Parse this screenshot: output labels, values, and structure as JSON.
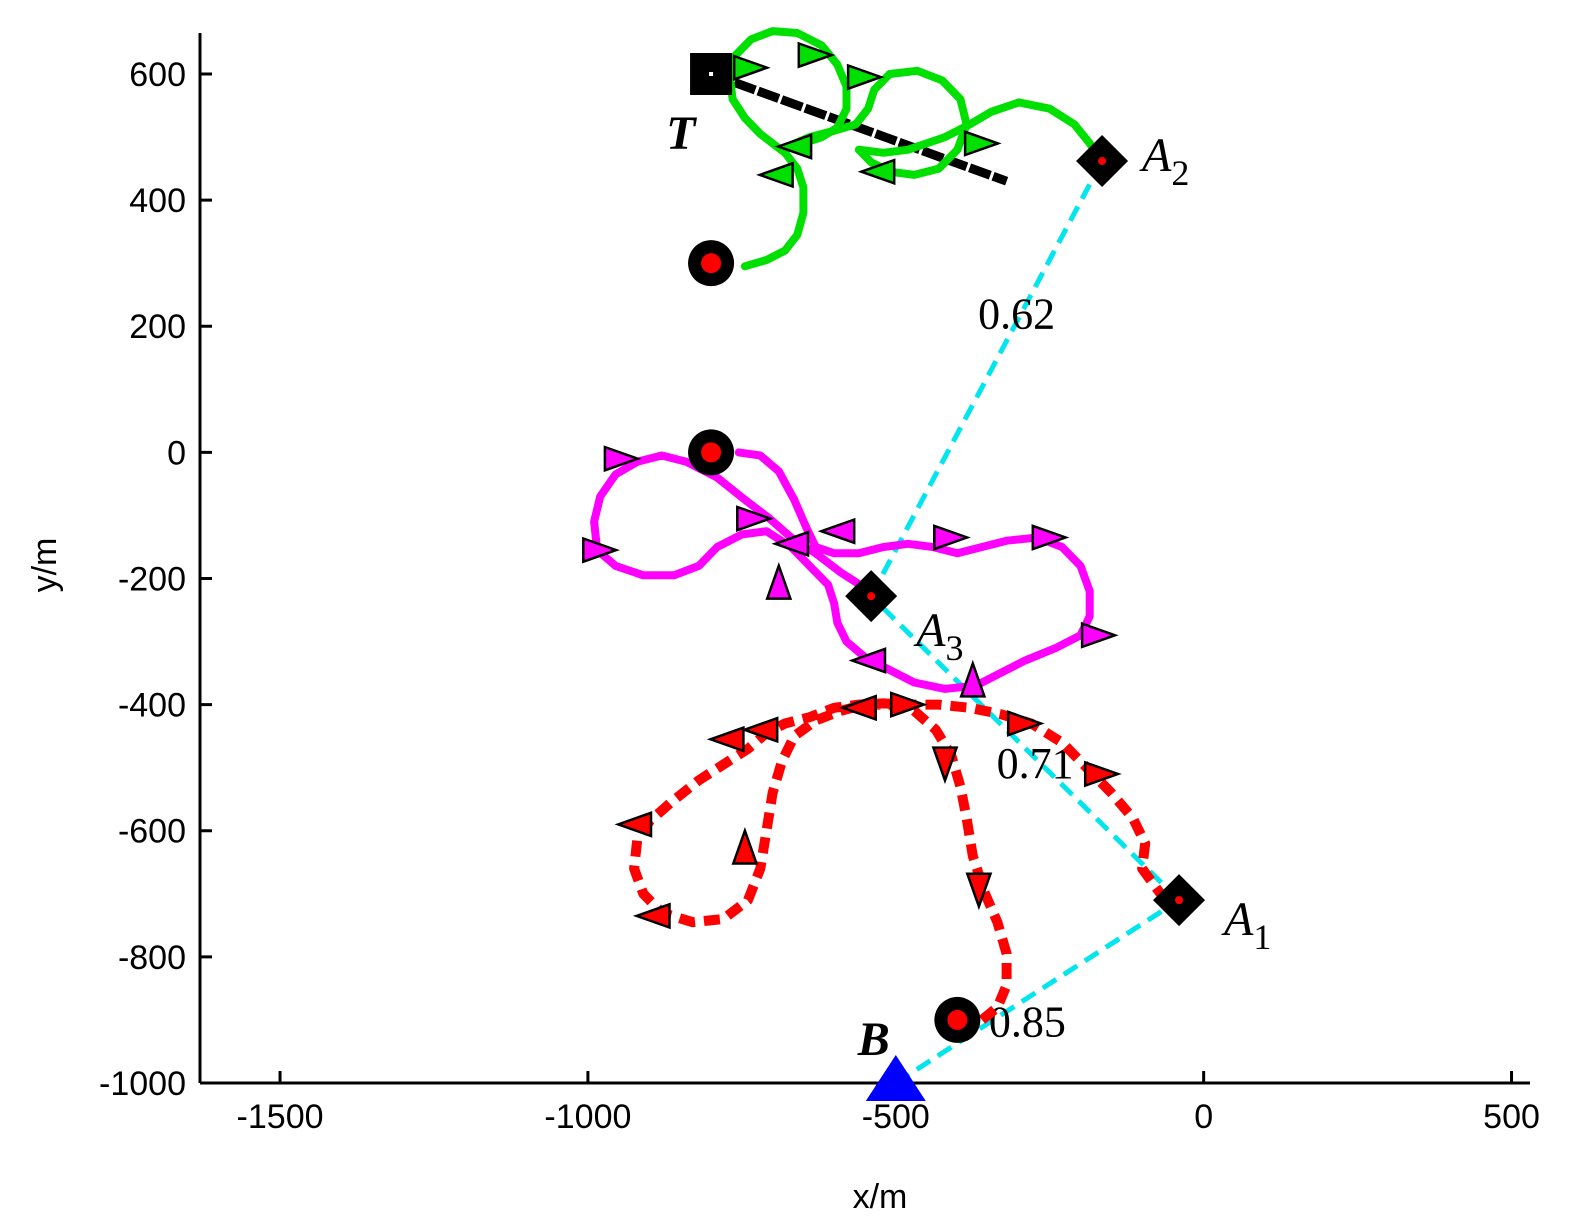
{
  "chart_data": {
    "type": "line",
    "xlabel": "x/m",
    "ylabel": "y/m",
    "xlim": [
      -1630,
      530
    ],
    "ylim": [
      -1000,
      665
    ],
    "x_ticks": [
      -1500,
      -1000,
      -500,
      0,
      500
    ],
    "y_ticks": [
      -1000,
      -800,
      -600,
      -400,
      -200,
      0,
      200,
      400,
      600
    ],
    "x_tick_labels": [
      "-1500",
      "-1000",
      "-500",
      "0",
      "500"
    ],
    "y_tick_labels": [
      "-1000",
      "-800",
      "-600",
      "-400",
      "-200",
      "0",
      "200",
      "400",
      "600"
    ],
    "grid": false,
    "series": [
      {
        "color": "#00e000",
        "style": "solid",
        "points": [
          [
            -745,
            295
          ],
          [
            -710,
            305
          ],
          [
            -680,
            320
          ],
          [
            -660,
            345
          ],
          [
            -650,
            380
          ],
          [
            -650,
            420
          ],
          [
            -660,
            450
          ],
          [
            -680,
            475
          ],
          [
            -700,
            490
          ],
          [
            -720,
            505
          ],
          [
            -745,
            530
          ],
          [
            -765,
            560
          ],
          [
            -770,
            600
          ],
          [
            -760,
            630
          ],
          [
            -735,
            655
          ],
          [
            -700,
            668
          ],
          [
            -660,
            665
          ],
          [
            -620,
            645
          ],
          [
            -595,
            615
          ],
          [
            -580,
            580
          ],
          [
            -580,
            545
          ],
          [
            -595,
            515
          ],
          [
            -620,
            500
          ],
          [
            -650,
            490
          ],
          [
            -675,
            485
          ],
          [
            -640,
            500
          ],
          [
            -600,
            510
          ],
          [
            -565,
            520
          ],
          [
            -545,
            545
          ],
          [
            -535,
            575
          ],
          [
            -510,
            600
          ],
          [
            -465,
            605
          ],
          [
            -425,
            590
          ],
          [
            -395,
            560
          ],
          [
            -385,
            520
          ],
          [
            -400,
            480
          ],
          [
            -430,
            450
          ],
          [
            -470,
            440
          ],
          [
            -510,
            445
          ],
          [
            -540,
            460
          ],
          [
            -560,
            480
          ],
          [
            -520,
            475
          ],
          [
            -480,
            480
          ],
          [
            -450,
            490
          ],
          [
            -420,
            500
          ],
          [
            -380,
            520
          ],
          [
            -345,
            540
          ],
          [
            -300,
            555
          ],
          [
            -250,
            545
          ],
          [
            -210,
            520
          ],
          [
            -185,
            490
          ],
          [
            -165,
            462
          ]
        ],
        "arrows": [
          [
            -740,
            610,
            "r"
          ],
          [
            -635,
            630,
            "r"
          ],
          [
            -555,
            595,
            "r"
          ],
          [
            -365,
            490,
            "r"
          ],
          [
            -660,
            485,
            "l"
          ],
          [
            -690,
            440,
            "l"
          ],
          [
            -525,
            445,
            "l"
          ]
        ]
      },
      {
        "color": "#ff00ff",
        "style": "solid",
        "points": [
          [
            -755,
            0
          ],
          [
            -720,
            -5
          ],
          [
            -690,
            -30
          ],
          [
            -665,
            -75
          ],
          [
            -645,
            -120
          ],
          [
            -630,
            -150
          ],
          [
            -600,
            -160
          ],
          [
            -560,
            -160
          ],
          [
            -520,
            -150
          ],
          [
            -480,
            -145
          ],
          [
            -440,
            -150
          ],
          [
            -400,
            -160
          ],
          [
            -360,
            -150
          ],
          [
            -320,
            -140
          ],
          [
            -270,
            -135
          ],
          [
            -230,
            -150
          ],
          [
            -200,
            -180
          ],
          [
            -185,
            -220
          ],
          [
            -185,
            -260
          ],
          [
            -200,
            -290
          ],
          [
            -240,
            -310
          ],
          [
            -290,
            -330
          ],
          [
            -330,
            -350
          ],
          [
            -370,
            -370
          ],
          [
            -420,
            -375
          ],
          [
            -470,
            -365
          ],
          [
            -510,
            -345
          ],
          [
            -550,
            -325
          ],
          [
            -580,
            -300
          ],
          [
            -595,
            -270
          ],
          [
            -600,
            -240
          ],
          [
            -610,
            -210
          ],
          [
            -640,
            -180
          ],
          [
            -670,
            -150
          ],
          [
            -710,
            -125
          ],
          [
            -750,
            -130
          ],
          [
            -790,
            -150
          ],
          [
            -820,
            -180
          ],
          [
            -860,
            -195
          ],
          [
            -910,
            -195
          ],
          [
            -955,
            -180
          ],
          [
            -985,
            -155
          ],
          [
            -990,
            -110
          ],
          [
            -980,
            -70
          ],
          [
            -955,
            -35
          ],
          [
            -920,
            -15
          ],
          [
            -880,
            -5
          ],
          [
            -840,
            -15
          ],
          [
            -790,
            -40
          ],
          [
            -745,
            -75
          ],
          [
            -705,
            -105
          ],
          [
            -670,
            -135
          ],
          [
            -630,
            -160
          ],
          [
            -590,
            -190
          ],
          [
            -550,
            -215
          ],
          [
            -530,
            -228
          ]
        ],
        "arrows": [
          [
            -950,
            -10,
            "r"
          ],
          [
            -985,
            -155,
            "r"
          ],
          [
            -415,
            -135,
            "r"
          ],
          [
            -255,
            -135,
            "r"
          ],
          [
            -175,
            -290,
            "r"
          ],
          [
            -735,
            -105,
            "r"
          ],
          [
            -665,
            -145,
            "l"
          ],
          [
            -590,
            -125,
            "l"
          ],
          [
            -540,
            -330,
            "l"
          ],
          [
            -690,
            -210,
            "u"
          ],
          [
            -375,
            -365,
            "u"
          ]
        ]
      },
      {
        "color": "#ff0000",
        "style": "dashed",
        "points": [
          [
            -360,
            -900
          ],
          [
            -335,
            -880
          ],
          [
            -320,
            -845
          ],
          [
            -320,
            -795
          ],
          [
            -335,
            -745
          ],
          [
            -355,
            -700
          ],
          [
            -375,
            -640
          ],
          [
            -385,
            -580
          ],
          [
            -395,
            -530
          ],
          [
            -410,
            -480
          ],
          [
            -435,
            -440
          ],
          [
            -470,
            -410
          ],
          [
            -510,
            -400
          ],
          [
            -550,
            -400
          ],
          [
            -590,
            -410
          ],
          [
            -630,
            -425
          ],
          [
            -665,
            -450
          ],
          [
            -685,
            -490
          ],
          [
            -700,
            -540
          ],
          [
            -710,
            -600
          ],
          [
            -720,
            -660
          ],
          [
            -740,
            -710
          ],
          [
            -780,
            -740
          ],
          [
            -830,
            -745
          ],
          [
            -880,
            -730
          ],
          [
            -910,
            -700
          ],
          [
            -925,
            -660
          ],
          [
            -920,
            -615
          ],
          [
            -900,
            -585
          ],
          [
            -865,
            -555
          ],
          [
            -820,
            -520
          ],
          [
            -780,
            -495
          ],
          [
            -740,
            -470
          ],
          [
            -710,
            -445
          ],
          [
            -680,
            -430
          ],
          [
            -640,
            -420
          ],
          [
            -600,
            -405
          ],
          [
            -560,
            -400
          ],
          [
            -520,
            -398
          ],
          [
            -480,
            -400
          ],
          [
            -430,
            -400
          ],
          [
            -380,
            -405
          ],
          [
            -330,
            -415
          ],
          [
            -280,
            -430
          ],
          [
            -230,
            -460
          ],
          [
            -190,
            -500
          ],
          [
            -150,
            -540
          ],
          [
            -115,
            -580
          ],
          [
            -95,
            -620
          ],
          [
            -100,
            -660
          ],
          [
            -70,
            -700
          ]
        ],
        "arrows": [
          [
            -920,
            -590,
            "l"
          ],
          [
            -890,
            -735,
            "l"
          ],
          [
            -770,
            -455,
            "l"
          ],
          [
            -715,
            -440,
            "l"
          ],
          [
            -555,
            -405,
            "l"
          ],
          [
            -295,
            -430,
            "r"
          ],
          [
            -170,
            -510,
            "r"
          ],
          [
            -485,
            -400,
            "r"
          ],
          [
            -420,
            -490,
            "d"
          ],
          [
            -365,
            -690,
            "d"
          ],
          [
            -745,
            -630,
            "u"
          ]
        ]
      }
    ],
    "links": [
      {
        "from": [
          -500,
          -1000
        ],
        "to": [
          -40,
          -710
        ],
        "label": "0.85"
      },
      {
        "from": [
          -40,
          -710
        ],
        "to": [
          -540,
          -228
        ],
        "label": "0.71"
      },
      {
        "from": [
          -540,
          -228
        ],
        "to": [
          -165,
          462
        ],
        "label": "0.62"
      }
    ],
    "start_points": [
      [
        -800,
        300
      ],
      [
        -800,
        0
      ],
      [
        -400,
        -900
      ]
    ],
    "anchors": [
      {
        "x": -40,
        "y": -710,
        "letter": "A",
        "sub": "1"
      },
      {
        "x": -165,
        "y": 462,
        "letter": "A",
        "sub": "2"
      },
      {
        "x": -540,
        "y": -228,
        "letter": "A",
        "sub": "3"
      }
    ],
    "target": {
      "x": -800,
      "y": 600,
      "label": "T"
    },
    "base": {
      "x": -500,
      "y": -1000,
      "label": "B"
    },
    "target_line": {
      "from": [
        -800,
        600
      ],
      "to": [
        -320,
        430
      ]
    }
  }
}
